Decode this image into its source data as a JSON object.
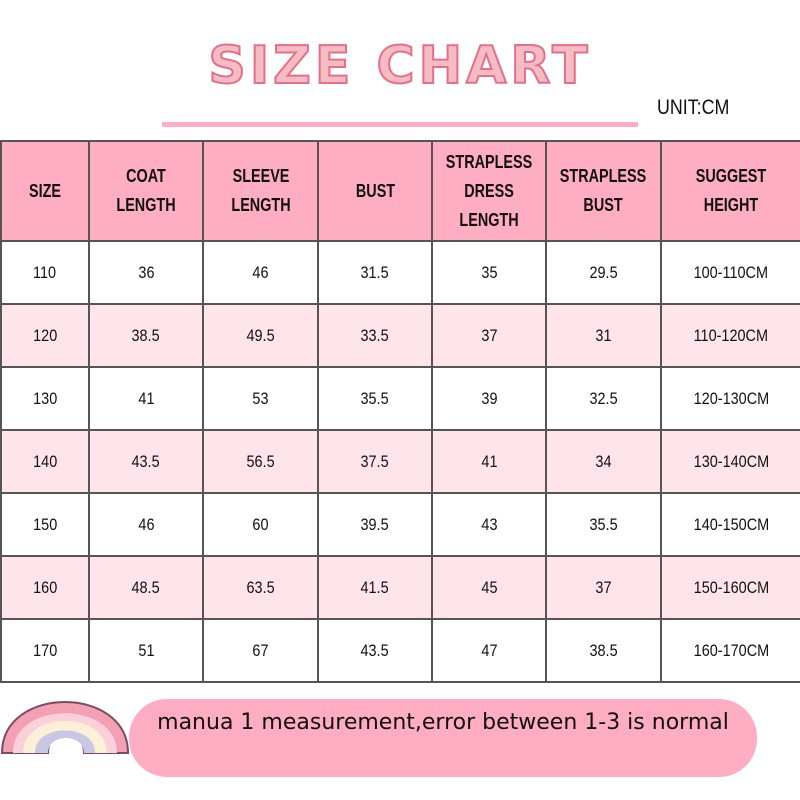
{
  "title": "SIZE CHART",
  "unit": "UNIT:CM",
  "table": {
    "headers": [
      "SIZE",
      "COAT LENGTH",
      "SLEEVE LENGTH",
      "BUST",
      "STRAPLESS DRESS LENGTH",
      "STRAPLESS BUST",
      "SUGGEST HEIGHT"
    ],
    "rows": [
      [
        "110",
        "36",
        "46",
        "31.5",
        "35",
        "29.5",
        "100-110CM"
      ],
      [
        "120",
        "38.5",
        "49.5",
        "33.5",
        "37",
        "31",
        "110-120CM"
      ],
      [
        "130",
        "41",
        "53",
        "35.5",
        "39",
        "32.5",
        "120-130CM"
      ],
      [
        "140",
        "43.5",
        "56.5",
        "37.5",
        "41",
        "34",
        "130-140CM"
      ],
      [
        "150",
        "46",
        "60",
        "39.5",
        "43",
        "35.5",
        "140-150CM"
      ],
      [
        "160",
        "48.5",
        "63.5",
        "41.5",
        "45",
        "37",
        "150-160CM"
      ],
      [
        "170",
        "51",
        "67",
        "43.5",
        "47",
        "38.5",
        "160-170CM"
      ]
    ]
  },
  "note": "manua 1 measurement,error between 1-3 is normal",
  "colors": {
    "header_bg": "#ffadc3",
    "alt_row_bg": "#ffe4ea",
    "accent": "#e56f86"
  },
  "icons": {
    "decoration": "rainbow-icon"
  }
}
